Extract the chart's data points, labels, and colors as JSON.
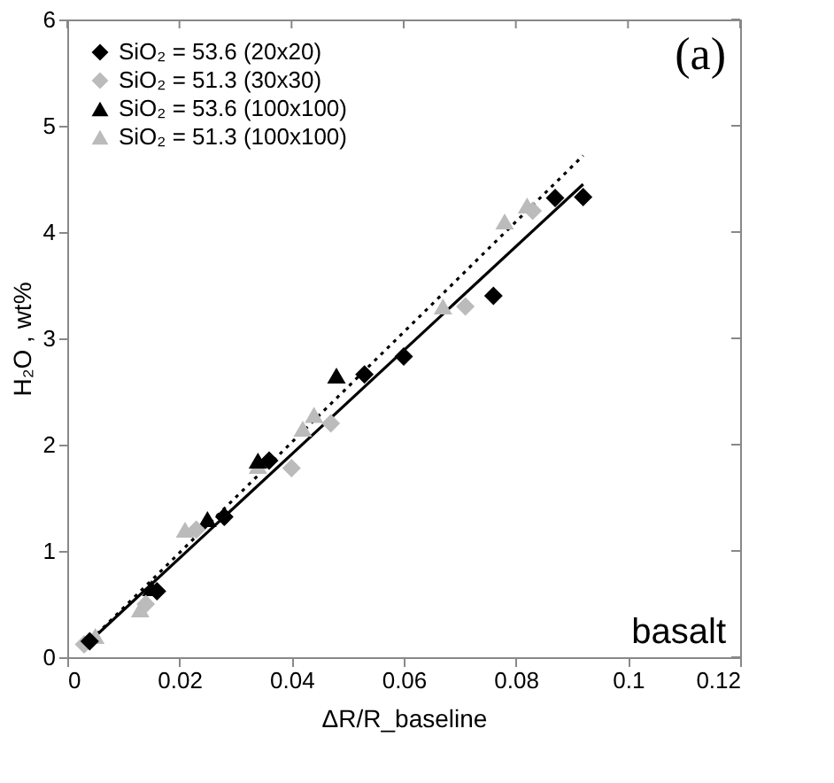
{
  "chart_data": {
    "type": "scatter",
    "xlabel": "ΔR/R_baseline",
    "ylabel": "H₂O , wt%",
    "xlim": [
      0,
      0.12
    ],
    "ylim": [
      0,
      6
    ],
    "xticks": [
      0,
      0.02,
      0.04,
      0.06,
      0.08,
      0.1,
      0.12
    ],
    "yticks": [
      0,
      1,
      2,
      3,
      4,
      5,
      6
    ],
    "grid": false,
    "legend": "top left",
    "annotations": [
      "(a)",
      "basalt"
    ],
    "series": [
      {
        "name": "SiO₂ = 53.6 (20x20)",
        "color": "#000000",
        "marker": "diamond",
        "x": [
          0.004,
          0.016,
          0.028,
          0.036,
          0.053,
          0.06,
          0.076,
          0.087,
          0.092
        ],
        "values": [
          0.15,
          0.62,
          1.32,
          1.85,
          2.66,
          2.83,
          3.4,
          4.32,
          4.33
        ]
      },
      {
        "name": "SiO₂ = 51.3 (30x30)",
        "color": "#bbbbbb",
        "marker": "diamond",
        "x": [
          0.003,
          0.014,
          0.023,
          0.04,
          0.047,
          0.071,
          0.083
        ],
        "values": [
          0.12,
          0.5,
          1.2,
          1.78,
          2.2,
          3.3,
          4.2
        ]
      },
      {
        "name": "SiO₂ = 53.6 (100x100)",
        "color": "#000000",
        "marker": "triangle",
        "x": [
          0.015,
          0.025,
          0.034,
          0.048
        ],
        "values": [
          0.65,
          1.3,
          1.85,
          2.65
        ]
      },
      {
        "name": "SiO₂ = 51.3 (100x100)",
        "color": "#bbbbbb",
        "marker": "triangle",
        "x": [
          0.005,
          0.013,
          0.021,
          0.034,
          0.042,
          0.044,
          0.067,
          0.078,
          0.082
        ],
        "values": [
          0.2,
          0.45,
          1.2,
          1.8,
          2.15,
          2.28,
          3.3,
          4.1,
          4.25
        ]
      },
      {
        "type": "line",
        "color": "#000000",
        "line_style": "solid",
        "x": [
          0.003,
          0.092
        ],
        "values": [
          0.1,
          4.45
        ]
      },
      {
        "type": "line",
        "color": "#000000",
        "line_style": "dotted",
        "x": [
          0.003,
          0.092
        ],
        "values": [
          0.1,
          4.72
        ]
      }
    ]
  }
}
